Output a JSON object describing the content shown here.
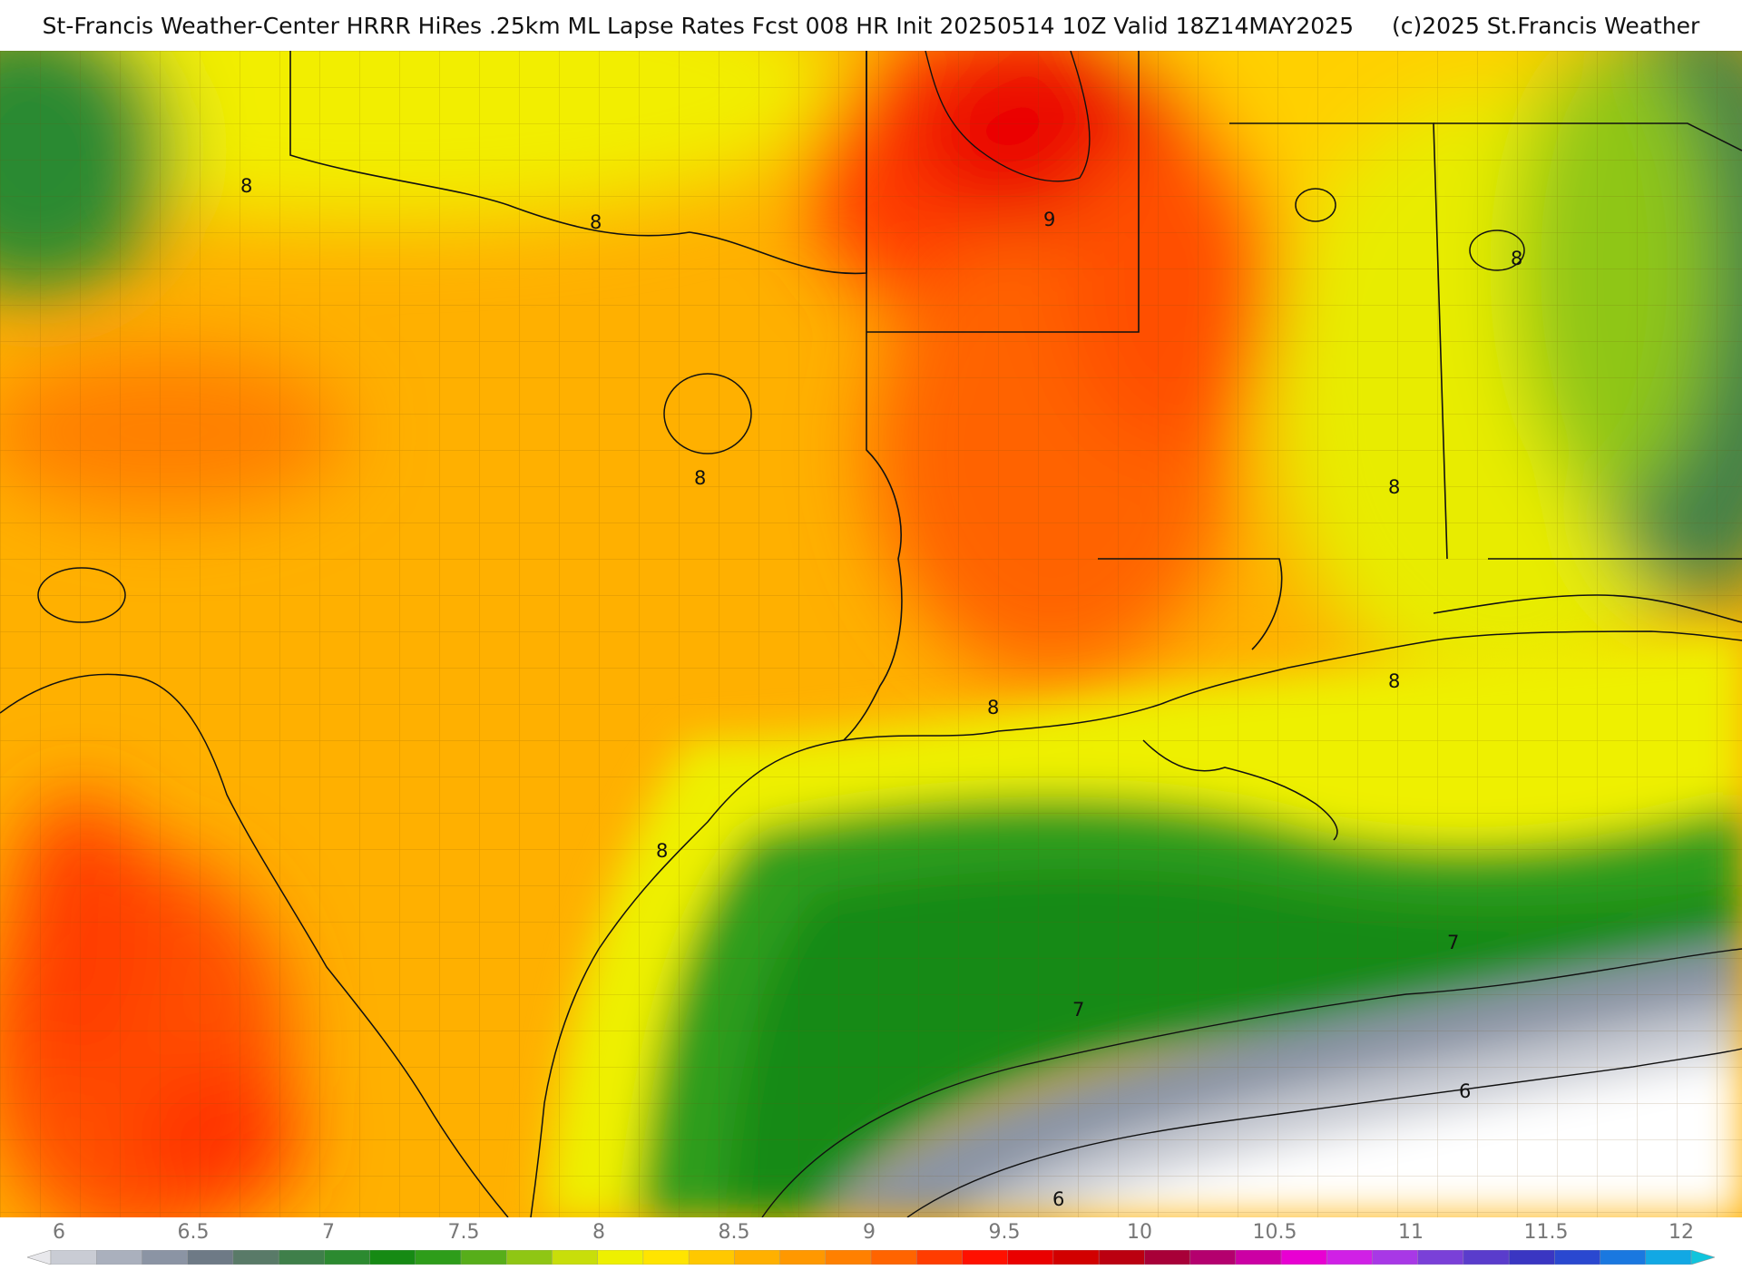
{
  "header": {
    "title_main": "St-Francis Weather-Center HRRR HiRes .25km ML Lapse Rates  Fcst 008 HR Init 20250514 10Z  Valid 18Z14MAY2025",
    "copyright": "(c)2025 St.Francis Weather"
  },
  "map": {
    "contour_labels": [
      "8",
      "8",
      "8",
      "8",
      "9",
      "8",
      "8",
      "8",
      "8",
      "7",
      "7",
      "6",
      "6"
    ]
  },
  "legend": {
    "ticks": [
      "6",
      "6.5",
      "7",
      "7.5",
      "8",
      "8.5",
      "9",
      "9.5",
      "10",
      "10.5",
      "11",
      "11.5",
      "12"
    ],
    "colors": [
      "#e8e8ec",
      "#c9ccd4",
      "#aab0bd",
      "#8b94a4",
      "#6e7a86",
      "#597a68",
      "#3f7f4a",
      "#2c8a30",
      "#168a14",
      "#2e9d1a",
      "#57ae1a",
      "#8fc614",
      "#c8de0a",
      "#eef000",
      "#ffe400",
      "#ffc800",
      "#ffb000",
      "#ff9800",
      "#ff8000",
      "#ff6400",
      "#ff3c00",
      "#ff1000",
      "#ea0000",
      "#d20000",
      "#bb0010",
      "#a80038",
      "#b4006e",
      "#cc00a4",
      "#e800d2",
      "#d020e6",
      "#a838e6",
      "#7a40d8",
      "#5a3ccc",
      "#3a36c2",
      "#2a48d0",
      "#1a78e0",
      "#12a8e4",
      "#10c4dc"
    ]
  }
}
